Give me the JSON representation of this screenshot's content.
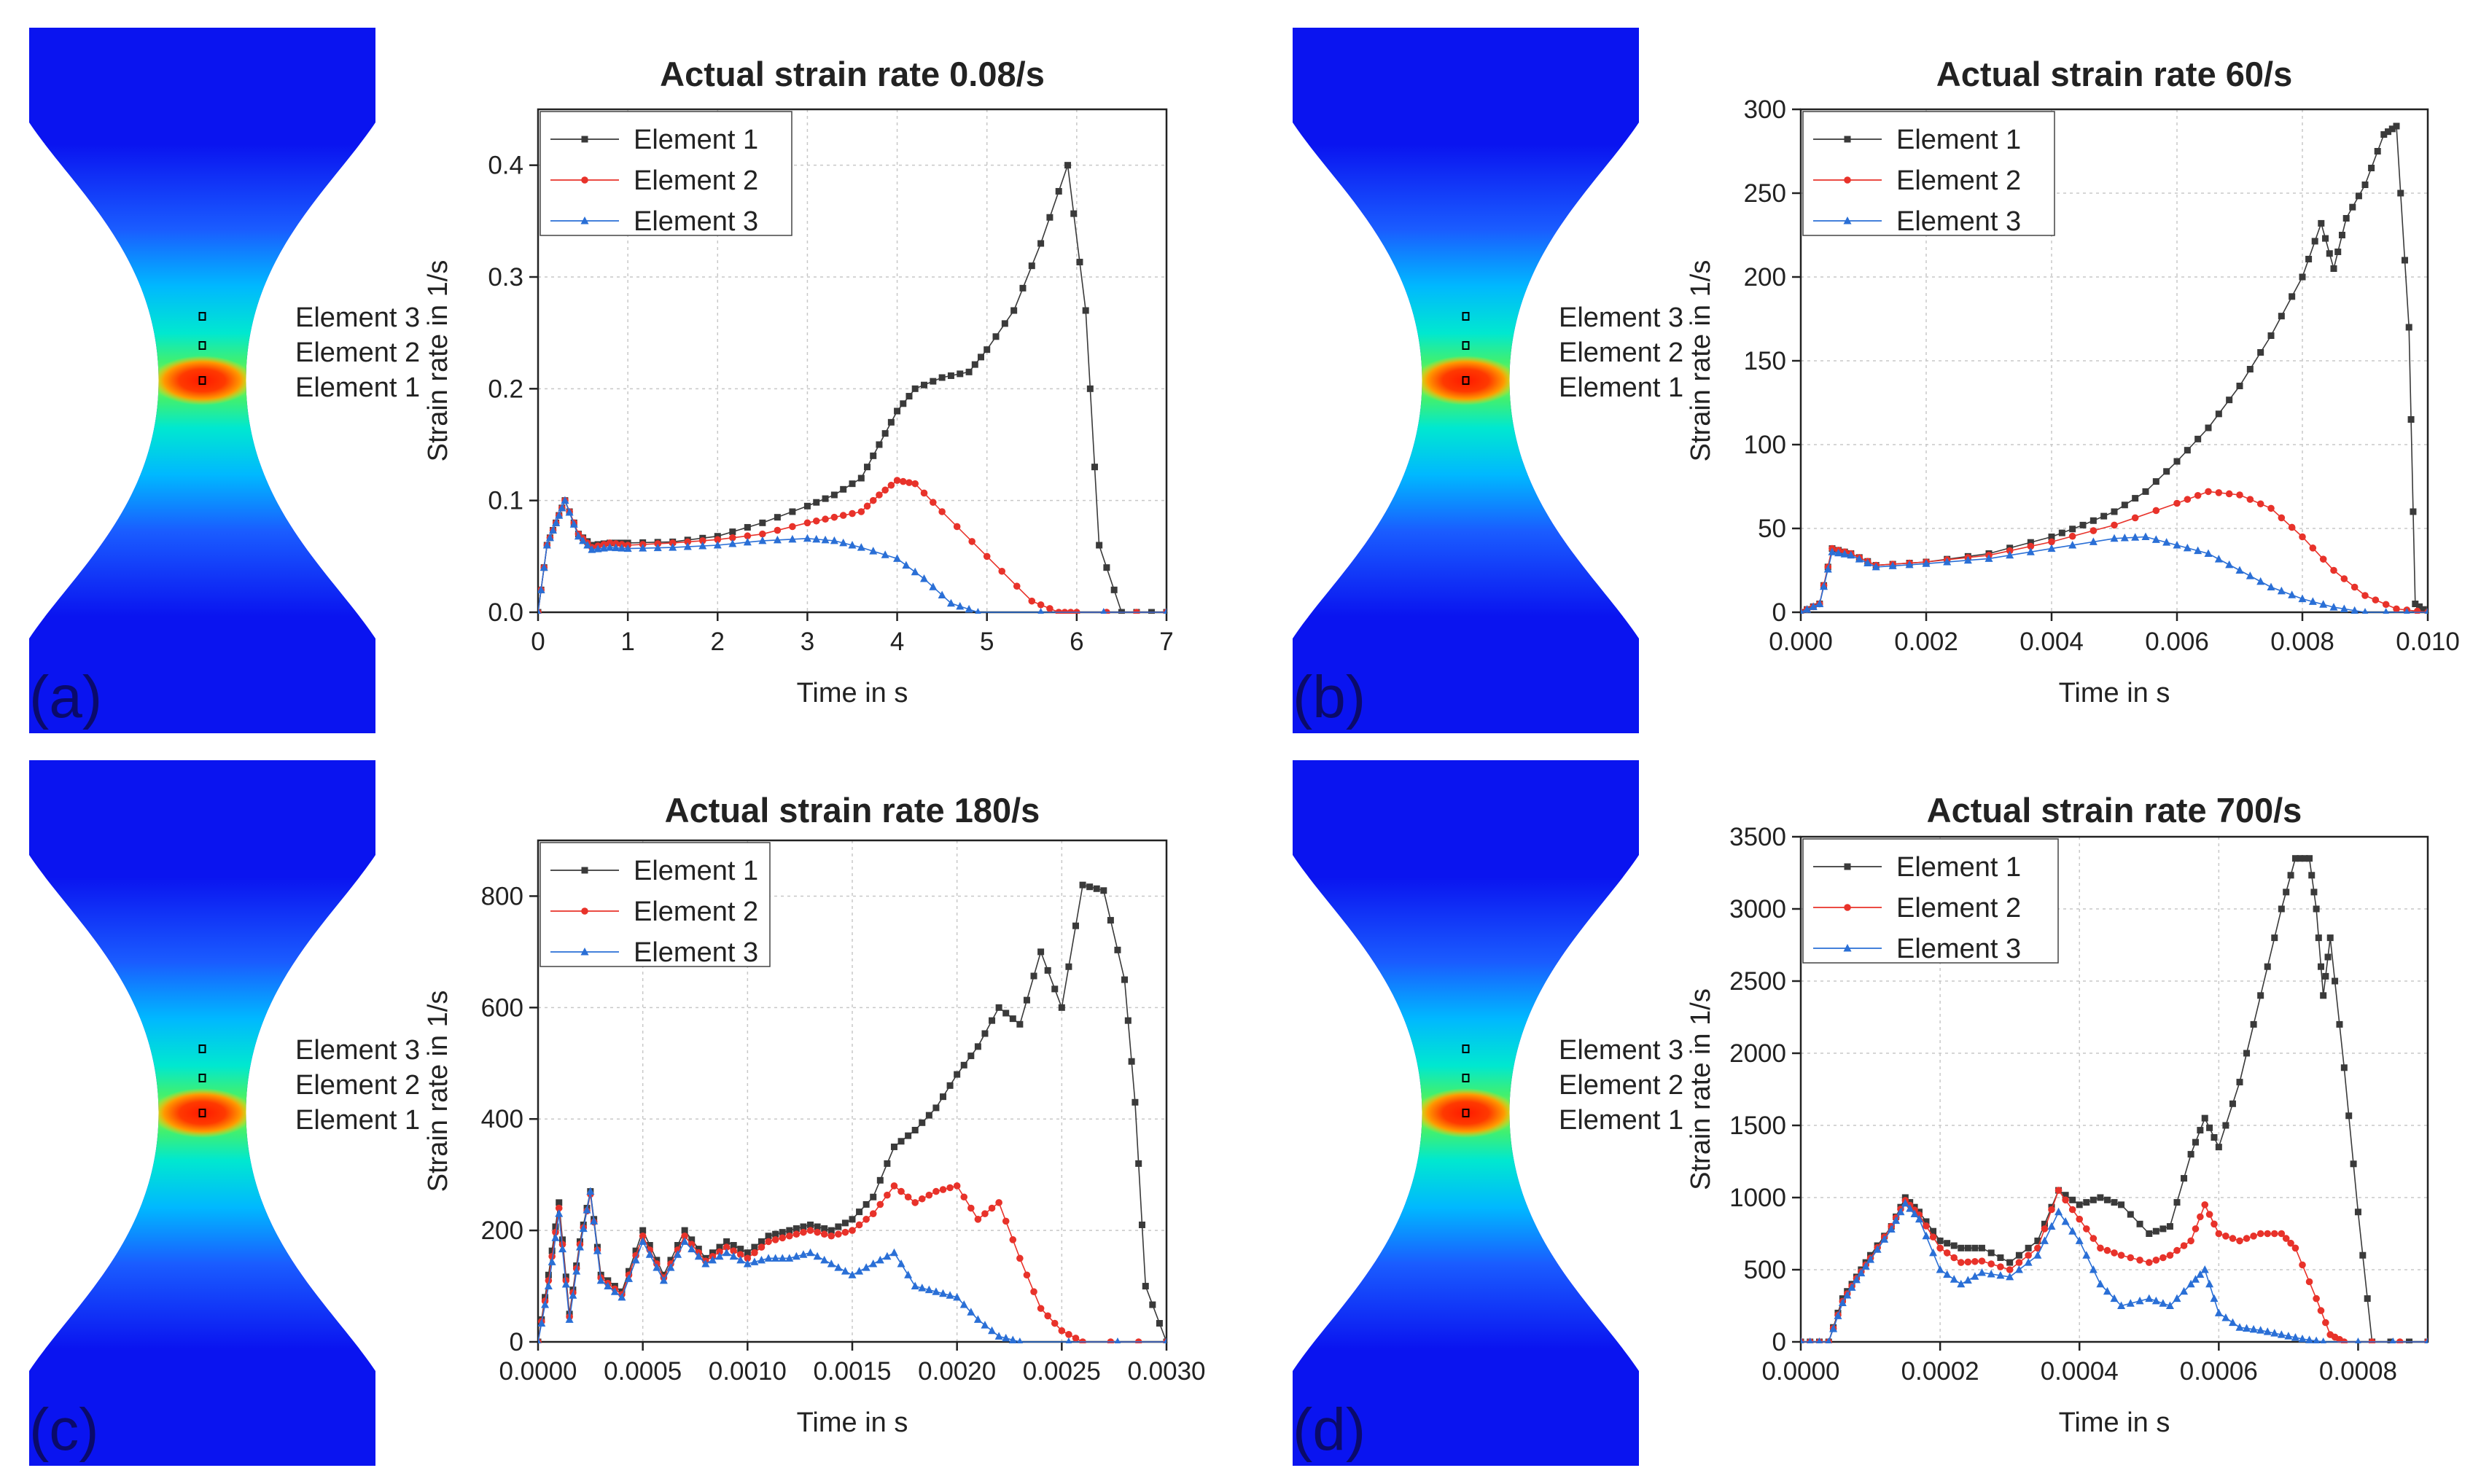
{
  "colors": {
    "element1": "#3a3a3a",
    "element2": "#e8322a",
    "element3": "#2a6fd6",
    "specimen_base": "#0a14f0",
    "grid": "#c8c8c8"
  },
  "specimen_labels": [
    "Element 3",
    "Element 2",
    "Element 1"
  ],
  "chart_data": [
    {
      "panel": "(a)",
      "type": "line",
      "title": "Actual strain rate 0.08/s",
      "xlabel": "Time in s",
      "ylabel": "Strain rate in 1/s",
      "xlim": [
        0,
        7
      ],
      "ylim": [
        0,
        0.45
      ],
      "xticks": [
        0,
        1,
        2,
        3,
        4,
        5,
        6,
        7
      ],
      "xtick_labels": [
        "0",
        "1",
        "2",
        "3",
        "4",
        "5",
        "6",
        "7"
      ],
      "yticks": [
        0,
        0.1,
        0.2,
        0.3,
        0.4
      ],
      "ytick_labels": [
        "0.0",
        "0.1",
        "0.2",
        "0.3",
        "0.4"
      ],
      "series": [
        {
          "name": "Element 1",
          "x": [
            0,
            0.1,
            0.2,
            0.3,
            0.45,
            0.6,
            0.8,
            1.0,
            1.5,
            2.0,
            2.5,
            3.0,
            3.3,
            3.6,
            3.8,
            4.0,
            4.2,
            4.5,
            4.8,
            5.0,
            5.3,
            5.6,
            5.9,
            6.1,
            6.25,
            6.5,
            7.0
          ],
          "y": [
            0,
            0.06,
            0.08,
            0.1,
            0.07,
            0.06,
            0.062,
            0.062,
            0.063,
            0.068,
            0.08,
            0.095,
            0.105,
            0.12,
            0.15,
            0.18,
            0.2,
            0.21,
            0.215,
            0.235,
            0.27,
            0.33,
            0.4,
            0.27,
            0.06,
            0,
            0
          ]
        },
        {
          "name": "Element 2",
          "x": [
            0,
            0.1,
            0.2,
            0.3,
            0.45,
            0.6,
            0.8,
            1.0,
            1.5,
            2.0,
            2.5,
            3.0,
            3.3,
            3.6,
            3.8,
            4.0,
            4.2,
            4.5,
            5.0,
            5.5,
            5.8,
            6.0,
            7.0
          ],
          "y": [
            0,
            0.06,
            0.08,
            0.1,
            0.07,
            0.058,
            0.062,
            0.06,
            0.062,
            0.065,
            0.07,
            0.08,
            0.085,
            0.09,
            0.105,
            0.118,
            0.115,
            0.09,
            0.05,
            0.01,
            0,
            0,
            0
          ]
        },
        {
          "name": "Element 3",
          "x": [
            0,
            0.1,
            0.2,
            0.3,
            0.45,
            0.6,
            0.8,
            1.0,
            1.5,
            2.0,
            2.5,
            3.0,
            3.3,
            3.6,
            4.0,
            4.3,
            4.6,
            4.9,
            7.0
          ],
          "y": [
            0,
            0.06,
            0.08,
            0.1,
            0.068,
            0.056,
            0.058,
            0.057,
            0.058,
            0.06,
            0.064,
            0.066,
            0.064,
            0.058,
            0.048,
            0.03,
            0.008,
            0,
            0
          ]
        }
      ]
    },
    {
      "panel": "(b)",
      "type": "line",
      "title": "Actual strain rate 60/s",
      "xlabel": "Time in s",
      "ylabel": "Strain rate in 1/s",
      "xlim": [
        0,
        0.01
      ],
      "ylim": [
        0,
        300
      ],
      "xticks": [
        0,
        0.002,
        0.004,
        0.006,
        0.008,
        0.01
      ],
      "xtick_labels": [
        "0.000",
        "0.002",
        "0.004",
        "0.006",
        "0.008",
        "0.010"
      ],
      "yticks": [
        0,
        50,
        100,
        150,
        200,
        250,
        300
      ],
      "ytick_labels": [
        "0",
        "50",
        "100",
        "150",
        "200",
        "250",
        "300"
      ],
      "series": [
        {
          "name": "Element 1",
          "x": [
            0,
            0.0003,
            0.0005,
            0.0008,
            0.0012,
            0.002,
            0.003,
            0.004,
            0.0045,
            0.005,
            0.0055,
            0.006,
            0.0065,
            0.007,
            0.0075,
            0.008,
            0.0083,
            0.0085,
            0.0087,
            0.009,
            0.0093,
            0.0095,
            0.0097,
            0.0098,
            0.01
          ],
          "y": [
            0,
            5,
            38,
            35,
            28,
            30,
            35,
            45,
            52,
            60,
            72,
            90,
            110,
            135,
            165,
            200,
            232,
            205,
            235,
            255,
            285,
            290,
            170,
            5,
            0
          ]
        },
        {
          "name": "Element 2",
          "x": [
            0,
            0.0003,
            0.0005,
            0.0008,
            0.0012,
            0.002,
            0.003,
            0.004,
            0.005,
            0.006,
            0.0065,
            0.007,
            0.0075,
            0.008,
            0.0085,
            0.009,
            0.0095,
            0.01
          ],
          "y": [
            0,
            5,
            38,
            35,
            28,
            30,
            34,
            42,
            52,
            65,
            72,
            70,
            62,
            45,
            25,
            10,
            2,
            0
          ]
        },
        {
          "name": "Element 3",
          "x": [
            0,
            0.0003,
            0.0005,
            0.0008,
            0.0012,
            0.002,
            0.003,
            0.004,
            0.005,
            0.0055,
            0.006,
            0.0065,
            0.007,
            0.0075,
            0.008,
            0.0085,
            0.009,
            0.01
          ],
          "y": [
            0,
            5,
            36,
            34,
            27,
            29,
            32,
            38,
            44,
            45,
            40,
            35,
            25,
            15,
            8,
            3,
            0,
            0
          ]
        }
      ]
    },
    {
      "panel": "(c)",
      "type": "line",
      "title": "Actual strain rate 180/s",
      "xlabel": "Time in s",
      "ylabel": "Strain rate in 1/s",
      "xlim": [
        0,
        0.003
      ],
      "ylim": [
        0,
        900
      ],
      "xticks": [
        0,
        0.0005,
        0.001,
        0.0015,
        0.002,
        0.0025,
        0.003
      ],
      "xtick_labels": [
        "0.0000",
        "0.0005",
        "0.0010",
        "0.0015",
        "0.0020",
        "0.0025",
        "0.0030"
      ],
      "yticks": [
        0,
        200,
        400,
        600,
        800
      ],
      "ytick_labels": [
        "0",
        "200",
        "400",
        "600",
        "800"
      ],
      "series": [
        {
          "name": "Element 1",
          "x": [
            0,
            5e-05,
            0.0001,
            0.00015,
            0.0002,
            0.00025,
            0.0003,
            0.0004,
            0.0005,
            0.0006,
            0.0007,
            0.0008,
            0.0009,
            0.001,
            0.0011,
            0.0012,
            0.0013,
            0.0014,
            0.0015,
            0.0016,
            0.0017,
            0.0018,
            0.0019,
            0.002,
            0.0021,
            0.0022,
            0.0023,
            0.0024,
            0.0025,
            0.0026,
            0.0027,
            0.0028,
            0.00285,
            0.0029,
            0.003
          ],
          "y": [
            0,
            120,
            250,
            50,
            180,
            270,
            120,
            90,
            200,
            120,
            200,
            150,
            180,
            160,
            190,
            200,
            210,
            200,
            220,
            260,
            350,
            380,
            420,
            480,
            530,
            600,
            570,
            700,
            600,
            820,
            810,
            650,
            430,
            100,
            0
          ]
        },
        {
          "name": "Element 2",
          "x": [
            0,
            5e-05,
            0.0001,
            0.00015,
            0.0002,
            0.00025,
            0.0003,
            0.0004,
            0.0005,
            0.0006,
            0.0007,
            0.0008,
            0.0009,
            0.001,
            0.0011,
            0.0012,
            0.0013,
            0.0014,
            0.0015,
            0.0016,
            0.0017,
            0.0018,
            0.0019,
            0.002,
            0.0021,
            0.0022,
            0.0023,
            0.0024,
            0.0025,
            0.0026,
            0.003
          ],
          "y": [
            0,
            110,
            240,
            45,
            175,
            265,
            115,
            85,
            190,
            115,
            190,
            145,
            170,
            150,
            180,
            190,
            200,
            190,
            200,
            230,
            280,
            250,
            270,
            280,
            220,
            250,
            150,
            60,
            20,
            0,
            0
          ]
        },
        {
          "name": "Element 3",
          "x": [
            0,
            5e-05,
            0.0001,
            0.00015,
            0.0002,
            0.00025,
            0.0003,
            0.0004,
            0.0005,
            0.0006,
            0.0007,
            0.0008,
            0.0009,
            0.001,
            0.0011,
            0.0012,
            0.0013,
            0.0014,
            0.0015,
            0.0016,
            0.0017,
            0.0018,
            0.0019,
            0.002,
            0.0021,
            0.0022,
            0.0023,
            0.003
          ],
          "y": [
            0,
            100,
            230,
            40,
            170,
            270,
            110,
            80,
            180,
            110,
            180,
            140,
            160,
            140,
            150,
            150,
            160,
            140,
            120,
            140,
            160,
            100,
            90,
            80,
            40,
            10,
            0,
            0
          ]
        }
      ]
    },
    {
      "panel": "(d)",
      "type": "line",
      "title": "Actual strain rate 700/s",
      "xlabel": "Time in s",
      "ylabel": "Strain rate in 1/s",
      "xlim": [
        0,
        0.0009
      ],
      "ylim": [
        0,
        3500
      ],
      "xticks": [
        0,
        0.0002,
        0.0004,
        0.0006,
        0.0008
      ],
      "xtick_labels": [
        "0.0000",
        "0.0002",
        "0.0004",
        "0.0006",
        "0.0008"
      ],
      "yticks": [
        0,
        500,
        1000,
        1500,
        2000,
        2500,
        3000,
        3500
      ],
      "ytick_labels": [
        "0",
        "500",
        "1000",
        "1500",
        "2000",
        "2500",
        "3000",
        "3500"
      ],
      "series": [
        {
          "name": "Element 1",
          "x": [
            0,
            4e-05,
            6e-05,
            8e-05,
            0.0001,
            0.00013,
            0.00015,
            0.00017,
            0.0002,
            0.00023,
            0.00026,
            0.0003,
            0.00034,
            0.00037,
            0.0004,
            0.00043,
            0.00046,
            0.0005,
            0.00053,
            0.00056,
            0.00058,
            0.0006,
            0.00063,
            0.00066,
            0.00069,
            0.00071,
            0.00073,
            0.00074,
            0.00075,
            0.00076,
            0.00078,
            0.0008,
            0.00082,
            0.0009
          ],
          "y": [
            0,
            0,
            300,
            450,
            600,
            800,
            1000,
            900,
            700,
            650,
            650,
            550,
            700,
            1050,
            950,
            1000,
            950,
            750,
            800,
            1300,
            1550,
            1350,
            1800,
            2400,
            3000,
            3350,
            3350,
            3000,
            2400,
            2800,
            1900,
            900,
            0,
            0
          ]
        },
        {
          "name": "Element 2",
          "x": [
            0,
            4e-05,
            6e-05,
            8e-05,
            0.0001,
            0.00013,
            0.00015,
            0.00017,
            0.0002,
            0.00023,
            0.00026,
            0.0003,
            0.00034,
            0.00037,
            0.0004,
            0.00043,
            0.00046,
            0.0005,
            0.00053,
            0.00056,
            0.00058,
            0.0006,
            0.00063,
            0.00066,
            0.00069,
            0.00071,
            0.00074,
            0.00076,
            0.00078,
            0.0009
          ],
          "y": [
            0,
            0,
            280,
            440,
            580,
            800,
            980,
            880,
            650,
            550,
            560,
            500,
            650,
            1050,
            850,
            650,
            600,
            550,
            600,
            700,
            950,
            750,
            700,
            750,
            750,
            650,
            300,
            50,
            0,
            0
          ]
        },
        {
          "name": "Element 3",
          "x": [
            0,
            4e-05,
            6e-05,
            8e-05,
            0.0001,
            0.00013,
            0.00015,
            0.00017,
            0.0002,
            0.00023,
            0.00026,
            0.0003,
            0.00034,
            0.00037,
            0.0004,
            0.00043,
            0.00046,
            0.0005,
            0.00053,
            0.00056,
            0.00058,
            0.0006,
            0.00063,
            0.00066,
            0.00069,
            0.00072,
            0.00075,
            0.0009
          ],
          "y": [
            0,
            0,
            270,
            430,
            570,
            780,
            960,
            850,
            500,
            400,
            480,
            450,
            600,
            900,
            700,
            400,
            250,
            300,
            250,
            400,
            500,
            200,
            100,
            80,
            50,
            20,
            0,
            0
          ]
        }
      ]
    }
  ]
}
